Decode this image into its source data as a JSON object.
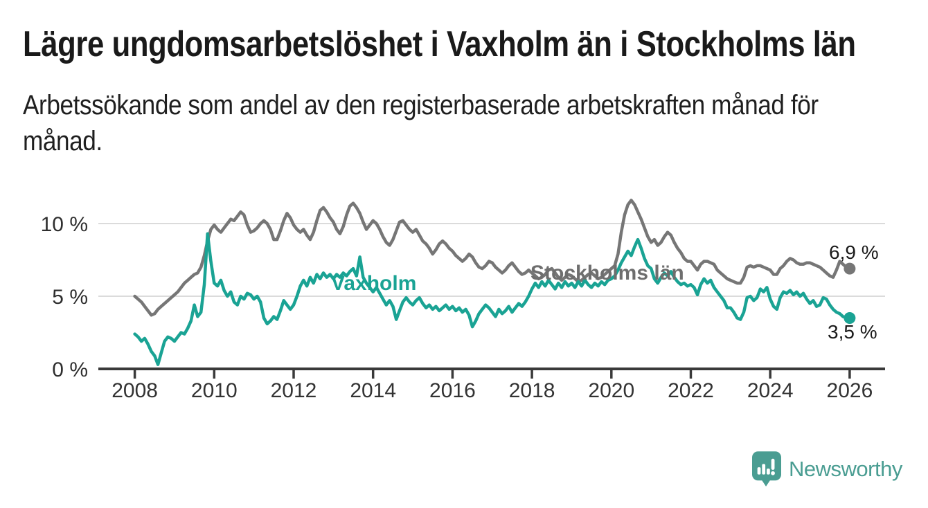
{
  "header": {
    "title": "Lägre ungdomsarbetslöshet i Vaxholm än i Stockholms län",
    "subtitle_lines": [
      "Arbetssökande som andel av den registerbaserade arbetskraften månad för",
      "månad."
    ]
  },
  "branding": {
    "name": "Newsworthy",
    "icon": "bar-chart-speech-bubble-icon",
    "color": "#4A9D92"
  },
  "chart_data": {
    "type": "line",
    "title": "Lägre ungdomsarbetslöshet i Vaxholm än i Stockholms län",
    "x_unit": "month",
    "x_start": "2008-01",
    "x_end": "2026-01",
    "x_tick_years": [
      2008,
      2010,
      2012,
      2014,
      2016,
      2018,
      2020,
      2022,
      2024,
      2026
    ],
    "y_axis": {
      "ticks": [
        {
          "value": 0,
          "label": "0 %"
        },
        {
          "value": 5,
          "label": "5 %"
        },
        {
          "value": 10,
          "label": "10 %"
        }
      ],
      "range": [
        0,
        12
      ],
      "gridlines": true
    },
    "legend_position": "inline-labels",
    "axis_color": "#3a3a3a",
    "gridline_color": "#dbdbdb",
    "series": [
      {
        "name": "Stockholms län",
        "color": "#767676",
        "label_color": "#6e6e6e",
        "end_label": "6,9 %",
        "end_value": 6.9,
        "values": [
          5.0,
          4.8,
          4.6,
          4.3,
          4.0,
          3.7,
          3.8,
          4.1,
          4.3,
          4.5,
          4.7,
          4.9,
          5.1,
          5.3,
          5.6,
          5.9,
          6.1,
          6.3,
          6.5,
          6.6,
          7.0,
          7.8,
          8.8,
          9.6,
          9.9,
          9.6,
          9.4,
          9.7,
          10.0,
          10.3,
          10.2,
          10.5,
          10.8,
          10.6,
          9.9,
          9.4,
          9.5,
          9.7,
          10.0,
          10.2,
          10.0,
          9.6,
          8.9,
          8.9,
          9.5,
          10.2,
          10.7,
          10.4,
          9.9,
          9.6,
          9.4,
          9.6,
          9.2,
          8.9,
          9.4,
          10.2,
          10.9,
          11.1,
          10.8,
          10.4,
          10.1,
          9.6,
          9.3,
          9.8,
          10.6,
          11.2,
          11.4,
          11.1,
          10.7,
          10.1,
          9.6,
          9.9,
          10.2,
          10.0,
          9.6,
          9.1,
          8.7,
          8.5,
          8.9,
          9.5,
          10.1,
          10.2,
          9.9,
          9.6,
          9.4,
          9.6,
          9.2,
          8.8,
          8.6,
          8.3,
          7.9,
          8.2,
          8.6,
          8.8,
          8.6,
          8.3,
          8.1,
          7.8,
          7.6,
          7.4,
          7.6,
          7.9,
          7.7,
          7.3,
          7.0,
          6.9,
          7.1,
          7.4,
          7.3,
          7.0,
          6.8,
          6.6,
          6.8,
          7.1,
          7.3,
          7.0,
          6.7,
          6.5,
          6.6,
          6.8,
          6.6,
          6.4,
          6.2,
          6.3,
          6.5,
          6.8,
          6.9,
          6.6,
          6.3,
          6.1,
          6.3,
          6.5,
          6.4,
          6.2,
          6.0,
          6.1,
          6.3,
          6.5,
          6.6,
          6.4,
          6.2,
          6.3,
          6.5,
          6.7,
          6.9,
          7.1,
          7.9,
          9.4,
          10.6,
          11.3,
          11.6,
          11.3,
          10.8,
          10.3,
          9.7,
          9.1,
          8.7,
          8.9,
          8.5,
          8.7,
          9.1,
          9.4,
          9.2,
          8.7,
          8.3,
          8.0,
          7.6,
          7.4,
          7.4,
          7.1,
          6.8,
          7.2,
          7.4,
          7.4,
          7.3,
          7.2,
          6.8,
          6.6,
          6.4,
          6.2,
          6.1,
          6.0,
          5.9,
          5.9,
          6.3,
          7.0,
          7.1,
          7.0,
          7.1,
          7.1,
          7.0,
          6.9,
          6.8,
          6.5,
          6.5,
          6.9,
          7.1,
          7.4,
          7.6,
          7.5,
          7.3,
          7.2,
          7.2,
          7.3,
          7.3,
          7.2,
          7.1,
          7.0,
          6.8,
          6.6,
          6.4,
          6.3,
          6.8,
          7.4,
          7.2,
          7.0,
          6.9
        ]
      },
      {
        "name": "Vaxholm",
        "color": "#1AA394",
        "label_color": "#1AA394",
        "end_label": "3,5 %",
        "end_value": 3.5,
        "values": [
          2.4,
          2.2,
          1.9,
          2.1,
          1.7,
          1.2,
          0.9,
          0.3,
          1.1,
          1.9,
          2.2,
          2.1,
          1.9,
          2.2,
          2.5,
          2.4,
          2.8,
          3.3,
          4.4,
          3.6,
          3.9,
          5.8,
          9.3,
          7.4,
          5.9,
          5.7,
          6.1,
          5.4,
          5.0,
          5.3,
          4.6,
          4.4,
          5.0,
          4.8,
          5.2,
          5.1,
          4.8,
          5.0,
          4.6,
          3.5,
          3.1,
          3.3,
          3.6,
          3.4,
          4.0,
          4.7,
          4.4,
          4.1,
          4.4,
          5.0,
          5.7,
          6.1,
          5.7,
          6.3,
          5.9,
          6.5,
          6.2,
          6.6,
          6.3,
          6.5,
          6.2,
          6.5,
          6.3,
          6.6,
          6.4,
          6.7,
          6.9,
          6.4,
          7.7,
          6.3,
          5.9,
          5.6,
          5.3,
          5.6,
          5.2,
          4.8,
          4.4,
          4.7,
          4.3,
          3.4,
          4.0,
          4.6,
          4.9,
          4.6,
          4.4,
          4.7,
          4.9,
          4.5,
          4.2,
          4.4,
          4.1,
          4.3,
          4.0,
          4.2,
          4.4,
          4.1,
          4.3,
          4.0,
          4.2,
          3.9,
          4.1,
          3.7,
          2.9,
          3.3,
          3.8,
          4.1,
          4.4,
          4.2,
          3.9,
          3.6,
          4.1,
          3.8,
          4.0,
          4.3,
          3.9,
          4.2,
          4.5,
          4.3,
          4.6,
          5.0,
          5.5,
          5.9,
          5.6,
          6.0,
          5.7,
          6.1,
          5.8,
          5.5,
          5.9,
          5.6,
          6.0,
          5.7,
          5.9,
          5.6,
          6.0,
          5.7,
          6.1,
          5.8,
          5.6,
          5.9,
          5.7,
          6.0,
          5.8,
          6.1,
          6.2,
          6.4,
          6.8,
          7.3,
          7.7,
          8.1,
          7.8,
          8.4,
          8.9,
          8.3,
          7.6,
          7.1,
          6.9,
          6.2,
          5.9,
          6.3,
          6.6,
          6.4,
          6.7,
          6.3,
          6.0,
          5.8,
          5.9,
          5.7,
          5.8,
          5.6,
          5.1,
          5.8,
          6.2,
          5.9,
          6.1,
          5.6,
          5.3,
          5.0,
          4.7,
          4.2,
          4.2,
          3.9,
          3.5,
          3.4,
          3.9,
          4.9,
          5.0,
          4.7,
          4.9,
          5.5,
          5.3,
          5.6,
          4.8,
          4.3,
          4.1,
          4.9,
          5.3,
          5.2,
          5.4,
          5.1,
          5.3,
          5.0,
          5.2,
          4.8,
          4.5,
          4.7,
          4.3,
          4.4,
          4.9,
          4.8,
          4.4,
          4.1,
          3.9,
          3.8,
          3.6,
          3.5,
          3.5
        ]
      }
    ]
  }
}
